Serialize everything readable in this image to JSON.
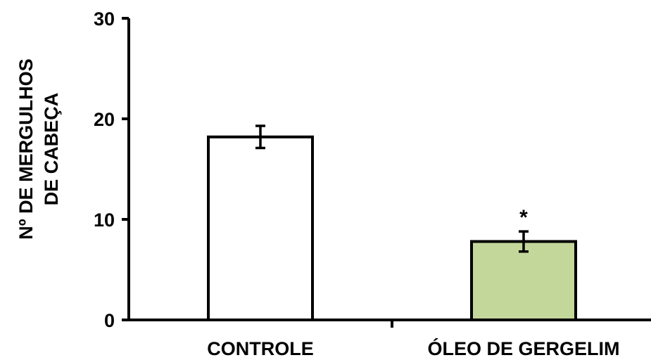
{
  "chart_data": {
    "type": "bar",
    "categories": [
      "CONTROLE",
      "ÓLEO DE GERGELIM"
    ],
    "values": [
      18.2,
      7.8
    ],
    "errors": [
      1.1,
      1.0
    ],
    "bar_colors": [
      "#ffffff",
      "#c4d79b"
    ],
    "edge_color": "#000000",
    "ylabel_lines": [
      "Nº DE MERGULHOS",
      "DE CABEÇA"
    ],
    "ylim": [
      0,
      30
    ],
    "yticks": [
      0,
      10,
      20,
      30
    ],
    "annotations": [
      {
        "category": "ÓLEO DE GERGELIM",
        "text": "*"
      }
    ],
    "grid": false
  }
}
